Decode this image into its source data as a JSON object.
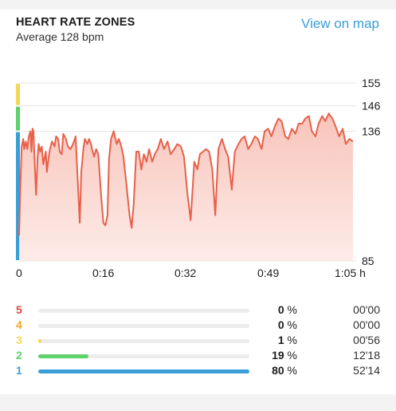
{
  "header": {
    "title": "HEART RATE ZONES",
    "subtitle": "Average 128 bpm",
    "link_label": "View on map"
  },
  "colors": {
    "line": "#e8604a",
    "fill_top": "#f7c6bd",
    "zone1": "#3a9fd8",
    "zone2": "#5ed26c",
    "zone3": "#f4d75a",
    "zone4": "#f5a623",
    "zone5": "#e04444"
  },
  "chart_data": {
    "type": "area",
    "ylim": [
      85,
      155
    ],
    "y_ticks": [
      "155",
      "146",
      "136",
      "85"
    ],
    "y_tick_values": [
      155,
      146,
      136,
      85
    ],
    "x_range_min": [
      0,
      65
    ],
    "x_tick_labels": [
      "0",
      "0:16",
      "0:32",
      "0:49",
      "1:05 h"
    ],
    "x_tick_values": [
      0,
      16,
      32,
      49,
      65
    ],
    "zone_bands": [
      {
        "zone": "1",
        "from": 85,
        "to": 136
      },
      {
        "zone": "2",
        "from": 136,
        "to": 146
      },
      {
        "zone": "3",
        "from": 146,
        "to": 155
      }
    ],
    "series": [
      {
        "x": [
          0.0,
          0.2,
          0.5,
          0.8,
          1.0,
          1.3,
          1.6,
          1.9,
          2.2,
          2.4,
          2.6,
          2.8,
          3.1,
          3.3,
          3.6,
          3.8,
          4.1,
          4.4,
          4.7,
          5.2,
          5.4,
          5.7,
          6.0,
          6.4,
          6.9,
          7.2,
          7.6,
          7.9,
          8.3,
          8.6,
          9.1,
          9.5,
          10.0,
          10.5,
          11.0,
          11.4,
          11.8,
          12.1,
          12.5,
          12.8,
          13.3,
          13.6,
          14.0,
          14.2,
          14.6,
          15.0,
          15.4,
          16.0,
          16.4,
          16.8,
          17.2,
          17.5,
          17.9,
          18.4,
          19.0,
          19.4,
          19.9,
          20.3,
          20.9,
          21.5,
          21.9,
          22.3,
          22.8,
          23.3,
          23.8,
          24.3,
          24.8,
          25.3,
          25.9,
          26.4,
          27.0,
          27.6,
          28.2,
          28.9,
          29.5,
          30.2,
          30.8,
          31.5,
          32.1,
          32.8,
          33.4,
          34.1,
          34.7,
          35.2,
          35.8,
          36.4,
          37.0,
          37.6,
          38.2,
          38.8,
          39.5,
          40.1,
          40.7,
          41.4,
          42.0,
          42.7,
          43.3,
          43.9,
          44.6,
          45.2,
          45.9,
          46.5,
          47.2,
          47.8,
          48.5,
          49.1,
          49.8,
          50.5,
          51.1,
          51.8,
          52.4,
          53.1,
          53.8,
          54.4,
          55.1,
          55.7,
          56.4,
          57.0,
          57.7,
          58.3,
          59.0,
          59.6,
          60.3,
          61.0,
          61.6,
          62.3,
          63.0,
          63.6,
          64.3,
          65.0
        ],
        "y": [
          95,
          112,
          130,
          133,
          129,
          132,
          129,
          134,
          136,
          128,
          137,
          136,
          120,
          111,
          126,
          131,
          128,
          130,
          123,
          128,
          120,
          125,
          129,
          132,
          130,
          134,
          133,
          128,
          127,
          135,
          133,
          130,
          129,
          131,
          134,
          117,
          100,
          120,
          129,
          133,
          131,
          133,
          131,
          129,
          126,
          129,
          127,
          110,
          100,
          99,
          103,
          125,
          133,
          136,
          131,
          133,
          130,
          126,
          115,
          103,
          98,
          107,
          128,
          128,
          121,
          127,
          124,
          129,
          124,
          127,
          129,
          133,
          129,
          132,
          127,
          129,
          131,
          130,
          126,
          111,
          101,
          124,
          121,
          127,
          128,
          129,
          128,
          121,
          103,
          129,
          133,
          129,
          126,
          113,
          128,
          131,
          133,
          134,
          129,
          131,
          134,
          133,
          129,
          136,
          137,
          134,
          138,
          141,
          140,
          134,
          133,
          137,
          135,
          139,
          139,
          141,
          142,
          136,
          134,
          139,
          142,
          140,
          143,
          141,
          138,
          134,
          137,
          131,
          133,
          132
        ]
      }
    ]
  },
  "zones": [
    {
      "num": "5",
      "pct_value": 0,
      "pct_label": "0",
      "time": "00'00",
      "color": "#e04444"
    },
    {
      "num": "4",
      "pct_value": 0,
      "pct_label": "0",
      "time": "00'00",
      "color": "#f5a623"
    },
    {
      "num": "3",
      "pct_value": 1,
      "pct_label": "1",
      "time": "00'56",
      "color": "#f4d75a"
    },
    {
      "num": "2",
      "pct_value": 19,
      "pct_label": "19",
      "time": "12'18",
      "color": "#5ed26c"
    },
    {
      "num": "1",
      "pct_value": 80,
      "pct_label": "80",
      "time": "52'14",
      "color": "#3a9fd8"
    }
  ],
  "pct_suffix": " %"
}
